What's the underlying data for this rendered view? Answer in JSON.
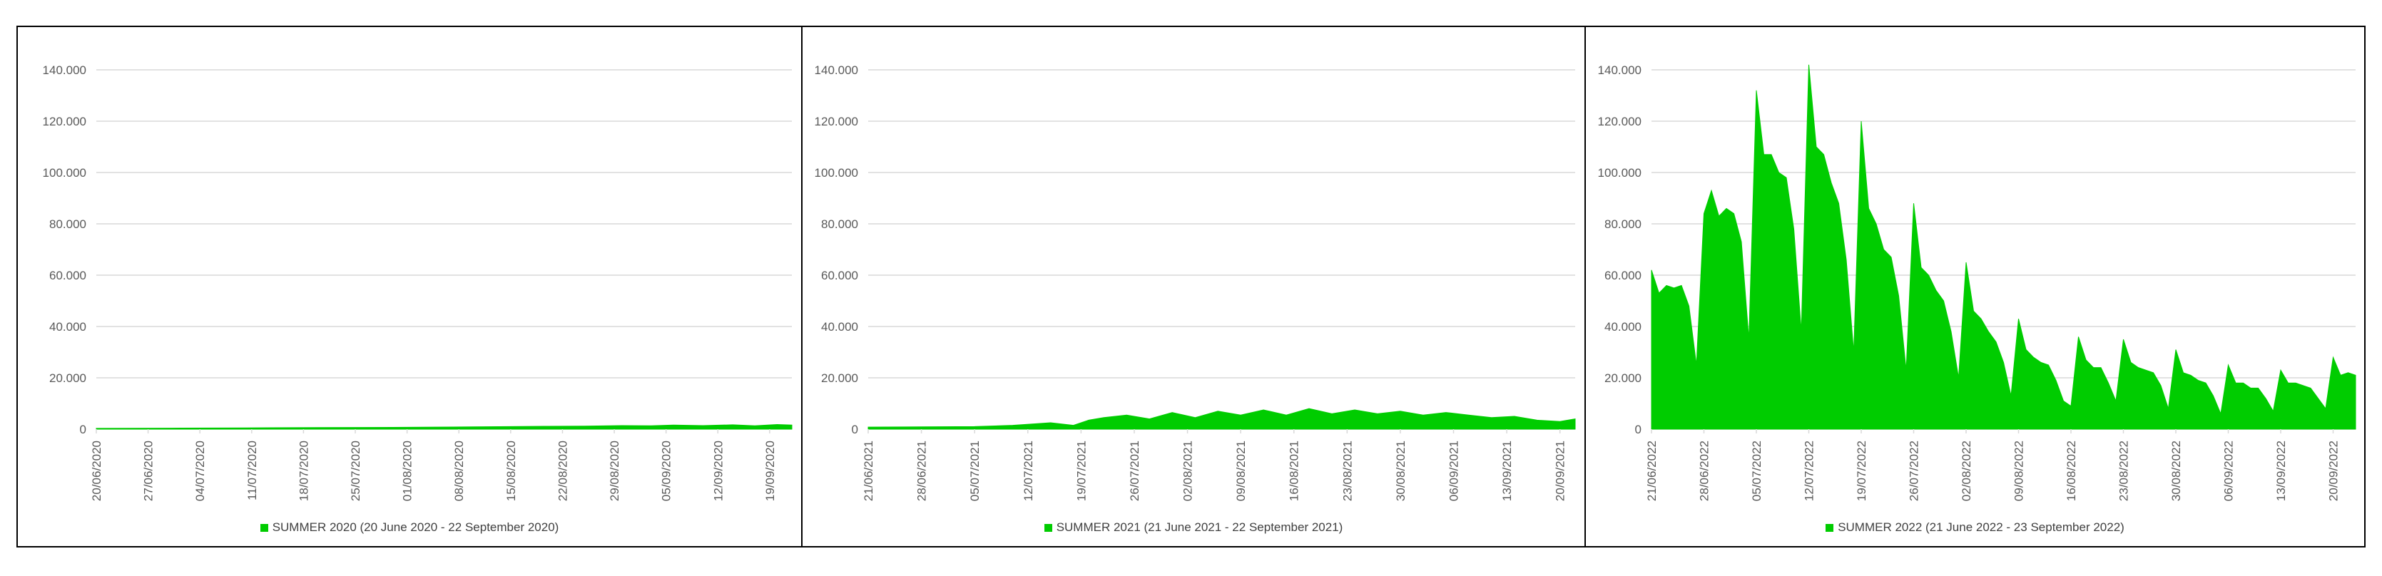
{
  "colors": {
    "area": "#00cc00",
    "grid": "#d9d9d9",
    "tick_text": "#595959",
    "legend_text": "#404040"
  },
  "y_ticks": [
    "0",
    "20.000",
    "40.000",
    "60.000",
    "80.000",
    "100.000",
    "120.000",
    "140.000"
  ],
  "chart_data": [
    {
      "type": "area",
      "title": "",
      "xlabel": "",
      "ylabel": "",
      "ylim": [
        0,
        140000
      ],
      "legend_position": "bottom",
      "series": [
        {
          "name": "SUMMER 2020 (20 June 2020 - 22 September 2020)",
          "color": "#00cc00",
          "x": [
            "2020-06-20",
            "2020-06-30",
            "2020-07-10",
            "2020-07-20",
            "2020-07-30",
            "2020-08-05",
            "2020-08-10",
            "2020-08-15",
            "2020-08-20",
            "2020-08-25",
            "2020-08-30",
            "2020-09-03",
            "2020-09-06",
            "2020-09-10",
            "2020-09-14",
            "2020-09-17",
            "2020-09-20",
            "2020-09-22"
          ],
          "values": [
            300,
            400,
            500,
            600,
            700,
            800,
            900,
            1000,
            1100,
            1200,
            1400,
            1300,
            1600,
            1400,
            1700,
            1300,
            1800,
            1600
          ]
        }
      ],
      "x_ticks": [
        "20/06/2020",
        "27/06/2020",
        "04/07/2020",
        "11/07/2020",
        "18/07/2020",
        "25/07/2020",
        "01/08/2020",
        "08/08/2020",
        "15/08/2020",
        "22/08/2020",
        "29/08/2020",
        "05/09/2020",
        "12/09/2020",
        "19/09/2020"
      ],
      "legend": "SUMMER 2020 (20 June 2020 - 22 September 2020)"
    },
    {
      "type": "area",
      "title": "",
      "xlabel": "",
      "ylabel": "",
      "ylim": [
        0,
        140000
      ],
      "legend_position": "bottom",
      "series": [
        {
          "name": "SUMMER 2021 (21 June 2021 - 22 September 2021)",
          "color": "#00cc00",
          "x": [
            "2021-06-21",
            "2021-06-28",
            "2021-07-05",
            "2021-07-10",
            "2021-07-15",
            "2021-07-18",
            "2021-07-20",
            "2021-07-22",
            "2021-07-25",
            "2021-07-28",
            "2021-07-31",
            "2021-08-03",
            "2021-08-06",
            "2021-08-09",
            "2021-08-12",
            "2021-08-15",
            "2021-08-18",
            "2021-08-21",
            "2021-08-24",
            "2021-08-27",
            "2021-08-30",
            "2021-09-02",
            "2021-09-05",
            "2021-09-08",
            "2021-09-11",
            "2021-09-14",
            "2021-09-17",
            "2021-09-20",
            "2021-09-22"
          ],
          "values": [
            800,
            900,
            1000,
            1500,
            2500,
            1500,
            3500,
            4500,
            5500,
            4000,
            6500,
            4500,
            7000,
            5500,
            7500,
            5500,
            8000,
            6000,
            7500,
            6000,
            7000,
            5500,
            6500,
            5500,
            4500,
            5000,
            3500,
            3000,
            4000
          ]
        }
      ],
      "x_ticks": [
        "21/06/2021",
        "28/06/2021",
        "05/07/2021",
        "12/07/2021",
        "19/07/2021",
        "26/07/2021",
        "02/08/2021",
        "09/08/2021",
        "16/08/2021",
        "23/08/2021",
        "30/08/2021",
        "06/09/2021",
        "13/09/2021",
        "20/09/2021"
      ],
      "legend": "SUMMER 2021 (21 June 2021 - 22 September 2021)"
    },
    {
      "type": "area",
      "title": "",
      "xlabel": "",
      "ylabel": "",
      "ylim": [
        0,
        140000
      ],
      "legend_position": "bottom",
      "series": [
        {
          "name": "SUMMER 2022 (21 June 2022 - 23 September 2022)",
          "color": "#00cc00",
          "x": [
            "2022-06-21",
            "2022-06-22",
            "2022-06-23",
            "2022-06-24",
            "2022-06-25",
            "2022-06-26",
            "2022-06-27",
            "2022-06-28",
            "2022-06-29",
            "2022-06-30",
            "2022-07-01",
            "2022-07-02",
            "2022-07-03",
            "2022-07-04",
            "2022-07-05",
            "2022-07-06",
            "2022-07-07",
            "2022-07-08",
            "2022-07-09",
            "2022-07-10",
            "2022-07-11",
            "2022-07-12",
            "2022-07-13",
            "2022-07-14",
            "2022-07-15",
            "2022-07-16",
            "2022-07-17",
            "2022-07-18",
            "2022-07-19",
            "2022-07-20",
            "2022-07-21",
            "2022-07-22",
            "2022-07-23",
            "2022-07-24",
            "2022-07-25",
            "2022-07-26",
            "2022-07-27",
            "2022-07-28",
            "2022-07-29",
            "2022-07-30",
            "2022-07-31",
            "2022-08-01",
            "2022-08-02",
            "2022-08-03",
            "2022-08-04",
            "2022-08-05",
            "2022-08-06",
            "2022-08-07",
            "2022-08-08",
            "2022-08-09",
            "2022-08-10",
            "2022-08-11",
            "2022-08-12",
            "2022-08-13",
            "2022-08-14",
            "2022-08-15",
            "2022-08-16",
            "2022-08-17",
            "2022-08-18",
            "2022-08-19",
            "2022-08-20",
            "2022-08-21",
            "2022-08-22",
            "2022-08-23",
            "2022-08-24",
            "2022-08-25",
            "2022-08-26",
            "2022-08-27",
            "2022-08-28",
            "2022-08-29",
            "2022-08-30",
            "2022-08-31",
            "2022-09-01",
            "2022-09-02",
            "2022-09-03",
            "2022-09-04",
            "2022-09-05",
            "2022-09-06",
            "2022-09-07",
            "2022-09-08",
            "2022-09-09",
            "2022-09-10",
            "2022-09-11",
            "2022-09-12",
            "2022-09-13",
            "2022-09-14",
            "2022-09-15",
            "2022-09-16",
            "2022-09-17",
            "2022-09-18",
            "2022-09-19",
            "2022-09-20",
            "2022-09-21",
            "2022-09-22",
            "2022-09-23"
          ],
          "values": [
            62000,
            53000,
            56000,
            55000,
            56000,
            48000,
            25000,
            84000,
            93000,
            83000,
            86000,
            84000,
            73000,
            35000,
            132000,
            107000,
            107000,
            100000,
            98000,
            78000,
            38000,
            142000,
            110000,
            107000,
            96000,
            88000,
            66000,
            30000,
            120000,
            86000,
            80000,
            70000,
            67000,
            52000,
            23000,
            88000,
            63000,
            60000,
            54000,
            50000,
            38000,
            20000,
            65000,
            46000,
            43000,
            38000,
            34000,
            26000,
            13000,
            43000,
            31000,
            28000,
            26000,
            25000,
            19000,
            11000,
            9000,
            36000,
            27000,
            24000,
            24000,
            18000,
            11000,
            35000,
            26000,
            24000,
            23000,
            22000,
            17000,
            8000,
            31000,
            22000,
            21000,
            19000,
            18000,
            13000,
            6000,
            25000,
            18000,
            18000,
            16000,
            16000,
            12000,
            7000,
            23000,
            18000,
            18000,
            17000,
            16000,
            12000,
            8000,
            28000,
            21000,
            22000,
            21000
          ]
        }
      ],
      "x_ticks": [
        "21/06/2022",
        "28/06/2022",
        "05/07/2022",
        "12/07/2022",
        "19/07/2022",
        "26/07/2022",
        "02/08/2022",
        "09/08/2022",
        "16/08/2022",
        "23/08/2022",
        "30/08/2022",
        "06/09/2022",
        "13/09/2022",
        "20/09/2022"
      ],
      "legend": "SUMMER 2022 (21 June 2022 - 23 September 2022)"
    }
  ]
}
